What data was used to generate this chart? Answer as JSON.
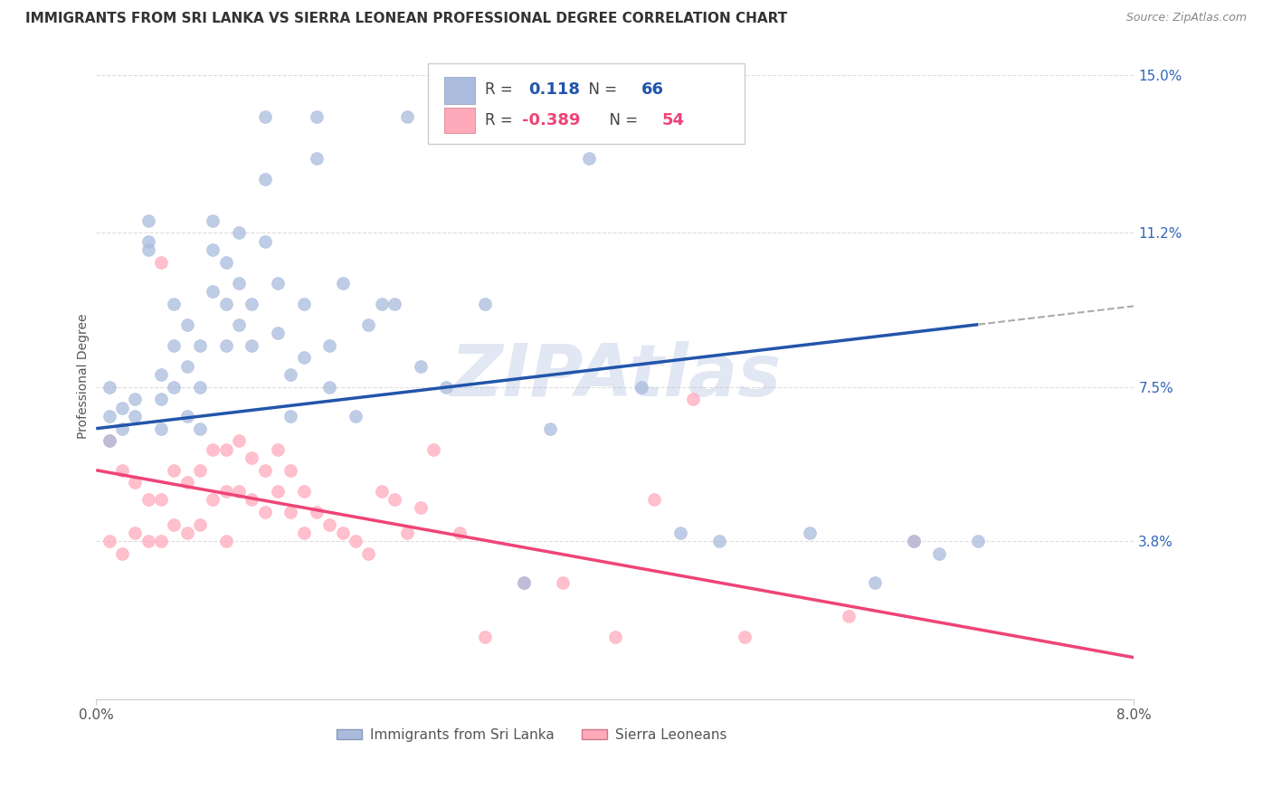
{
  "title": "IMMIGRANTS FROM SRI LANKA VS SIERRA LEONEAN PROFESSIONAL DEGREE CORRELATION CHART",
  "source": "Source: ZipAtlas.com",
  "ylabel": "Professional Degree",
  "xlim": [
    0.0,
    0.08
  ],
  "ylim": [
    0.0,
    0.155
  ],
  "sri_lanka_R": 0.118,
  "sri_lanka_N": 66,
  "sierra_leone_R": -0.389,
  "sierra_leone_N": 54,
  "sri_lanka_color": "#aabbdd",
  "sierra_leone_color": "#ffaabb",
  "sri_lanka_line_color": "#2255aa",
  "sierra_leone_line_color": "#ee4477",
  "watermark": "ZIPAtlas",
  "background_color": "#ffffff",
  "grid_color": "#dddddd",
  "ytick_vals": [
    0.038,
    0.075,
    0.112,
    0.15
  ],
  "ytick_labels": [
    "3.8%",
    "7.5%",
    "11.2%",
    "15.0%"
  ],
  "sri_lanka_x": [
    0.001,
    0.001,
    0.001,
    0.002,
    0.002,
    0.003,
    0.003,
    0.004,
    0.004,
    0.004,
    0.005,
    0.005,
    0.005,
    0.006,
    0.006,
    0.006,
    0.007,
    0.007,
    0.007,
    0.008,
    0.008,
    0.008,
    0.009,
    0.009,
    0.009,
    0.01,
    0.01,
    0.01,
    0.011,
    0.011,
    0.011,
    0.012,
    0.012,
    0.013,
    0.013,
    0.013,
    0.014,
    0.014,
    0.015,
    0.015,
    0.016,
    0.016,
    0.017,
    0.017,
    0.018,
    0.018,
    0.019,
    0.02,
    0.021,
    0.022,
    0.023,
    0.024,
    0.025,
    0.027,
    0.03,
    0.033,
    0.035,
    0.038,
    0.042,
    0.045,
    0.048,
    0.055,
    0.06,
    0.063,
    0.065,
    0.068
  ],
  "sri_lanka_y": [
    0.068,
    0.075,
    0.062,
    0.07,
    0.065,
    0.072,
    0.068,
    0.11,
    0.115,
    0.108,
    0.078,
    0.072,
    0.065,
    0.095,
    0.085,
    0.075,
    0.09,
    0.08,
    0.068,
    0.085,
    0.075,
    0.065,
    0.115,
    0.108,
    0.098,
    0.105,
    0.095,
    0.085,
    0.112,
    0.1,
    0.09,
    0.095,
    0.085,
    0.14,
    0.125,
    0.11,
    0.1,
    0.088,
    0.078,
    0.068,
    0.095,
    0.082,
    0.14,
    0.13,
    0.085,
    0.075,
    0.1,
    0.068,
    0.09,
    0.095,
    0.095,
    0.14,
    0.08,
    0.075,
    0.095,
    0.028,
    0.065,
    0.13,
    0.075,
    0.04,
    0.038,
    0.04,
    0.028,
    0.038,
    0.035,
    0.038
  ],
  "sierra_leone_x": [
    0.001,
    0.001,
    0.002,
    0.002,
    0.003,
    0.003,
    0.004,
    0.004,
    0.005,
    0.005,
    0.005,
    0.006,
    0.006,
    0.007,
    0.007,
    0.008,
    0.008,
    0.009,
    0.009,
    0.01,
    0.01,
    0.01,
    0.011,
    0.011,
    0.012,
    0.012,
    0.013,
    0.013,
    0.014,
    0.014,
    0.015,
    0.015,
    0.016,
    0.016,
    0.017,
    0.018,
    0.019,
    0.02,
    0.021,
    0.022,
    0.023,
    0.024,
    0.025,
    0.026,
    0.028,
    0.03,
    0.033,
    0.036,
    0.04,
    0.043,
    0.046,
    0.05,
    0.058,
    0.063
  ],
  "sierra_leone_y": [
    0.062,
    0.038,
    0.055,
    0.035,
    0.052,
    0.04,
    0.048,
    0.038,
    0.105,
    0.048,
    0.038,
    0.055,
    0.042,
    0.052,
    0.04,
    0.055,
    0.042,
    0.06,
    0.048,
    0.06,
    0.05,
    0.038,
    0.062,
    0.05,
    0.058,
    0.048,
    0.055,
    0.045,
    0.06,
    0.05,
    0.055,
    0.045,
    0.05,
    0.04,
    0.045,
    0.042,
    0.04,
    0.038,
    0.035,
    0.05,
    0.048,
    0.04,
    0.046,
    0.06,
    0.04,
    0.015,
    0.028,
    0.028,
    0.015,
    0.048,
    0.072,
    0.015,
    0.02,
    0.038
  ]
}
